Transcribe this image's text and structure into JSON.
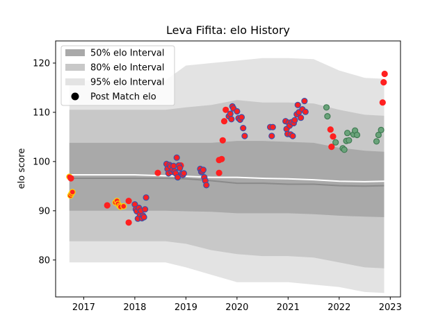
{
  "chart_data": {
    "type": "scatter",
    "title": "Leva Fifita: elo History",
    "xlabel": "",
    "ylabel": "elo score",
    "xlim": [
      2016.45,
      2023.2
    ],
    "ylim": [
      72.5,
      124.5
    ],
    "x_ticks": [
      2017,
      2018,
      2019,
      2020,
      2021,
      2022,
      2023
    ],
    "y_ticks": [
      80,
      90,
      100,
      110,
      120
    ],
    "grid": false,
    "legend": {
      "placement": "top-left",
      "entries": [
        "50% elo Interval",
        "80% elo Interval",
        "95% elo Interval",
        "Post Match elo"
      ]
    },
    "colors": {
      "band50": "#a9a9a9",
      "band80": "#c8c8c8",
      "band95": "#e3e3e3",
      "median_line": "#8a8a8a",
      "mean_line": "#ffffff",
      "point_fill": "#ff2020",
      "edge_yellow": "#ffd400",
      "edge_blue": "#3b4fa8",
      "green_fill": "#6aa37a",
      "green_edge": "#3f7a52"
    },
    "bands": {
      "x": [
        2016.72,
        2018.0,
        2018.6,
        2019.0,
        2019.5,
        2020.0,
        2020.5,
        2021.0,
        2021.5,
        2022.0,
        2022.5,
        2022.88
      ],
      "p95_upper": [
        116.5,
        116.5,
        116.5,
        119.5,
        120.0,
        120.5,
        121.0,
        121.0,
        120.8,
        118.5,
        117.0,
        116.8
      ],
      "p80_upper": [
        110.5,
        110.5,
        110.5,
        111.0,
        111.5,
        112.5,
        112.0,
        112.0,
        111.8,
        110.5,
        109.5,
        109.3
      ],
      "p50_upper": [
        103.8,
        103.8,
        103.8,
        103.8,
        103.8,
        104.2,
        104.2,
        104.0,
        103.8,
        102.8,
        102.2,
        102.0
      ],
      "p50_lower": [
        90.0,
        90.0,
        90.0,
        89.9,
        89.8,
        89.5,
        89.5,
        89.5,
        89.3,
        89.0,
        88.8,
        88.7
      ],
      "p80_lower": [
        83.8,
        83.8,
        83.8,
        83.3,
        82.0,
        81.2,
        80.8,
        80.8,
        80.5,
        79.5,
        78.5,
        78.3
      ],
      "p95_lower": [
        79.5,
        79.5,
        79.5,
        78.5,
        77.0,
        75.5,
        75.5,
        75.5,
        75.0,
        74.5,
        73.5,
        73.3
      ],
      "median": [
        96.6,
        96.6,
        96.6,
        96.5,
        96.1,
        95.6,
        95.6,
        95.4,
        95.4,
        95.1,
        95.0,
        95.1
      ],
      "mean": [
        97.3,
        97.3,
        97.1,
        97.0,
        96.8,
        96.8,
        96.6,
        96.5,
        96.3,
        96.0,
        95.9,
        96.0
      ]
    },
    "series": [
      {
        "edge": "yellow",
        "points": [
          [
            2016.72,
            96.9
          ],
          [
            2016.74,
            93.1
          ],
          [
            2016.76,
            93.5
          ],
          [
            2016.78,
            93.8
          ],
          [
            2017.62,
            91.7
          ],
          [
            2017.65,
            92.0
          ],
          [
            2017.67,
            91.4
          ],
          [
            2017.7,
            91.0
          ],
          [
            2017.72,
            90.8
          ],
          [
            2017.78,
            90.9
          ]
        ]
      },
      {
        "edge": "red",
        "points": [
          [
            2016.75,
            96.6
          ],
          [
            2017.46,
            91.1
          ],
          [
            2017.88,
            87.6
          ],
          [
            2017.88,
            92.0
          ],
          [
            2018.45,
            97.7
          ],
          [
            2018.9,
            99.2
          ],
          [
            2019.65,
            97.7
          ],
          [
            2019.65,
            100.3
          ],
          [
            2019.7,
            100.5
          ],
          [
            2019.72,
            104.3
          ],
          [
            2019.75,
            108.2
          ],
          [
            2019.78,
            110.5
          ],
          [
            2021.83,
            106.5
          ],
          [
            2021.85,
            103.0
          ],
          [
            2021.88,
            105.1
          ],
          [
            2022.85,
            112.0
          ],
          [
            2022.87,
            116.1
          ],
          [
            2022.89,
            117.8
          ]
        ]
      },
      {
        "edge": "blue",
        "points": [
          [
            2018.0,
            91.3
          ],
          [
            2018.02,
            90.3
          ],
          [
            2018.04,
            89.9
          ],
          [
            2018.06,
            88.4
          ],
          [
            2018.08,
            90.6
          ],
          [
            2018.1,
            89.3
          ],
          [
            2018.12,
            90.0
          ],
          [
            2018.14,
            88.5
          ],
          [
            2018.16,
            89.0
          ],
          [
            2018.18,
            88.7
          ],
          [
            2018.2,
            90.3
          ],
          [
            2018.22,
            92.7
          ],
          [
            2018.62,
            99.5
          ],
          [
            2018.64,
            98.5
          ],
          [
            2018.66,
            97.6
          ],
          [
            2018.68,
            99.3
          ],
          [
            2018.7,
            99.0
          ],
          [
            2018.72,
            97.9
          ],
          [
            2018.74,
            98.4
          ],
          [
            2018.76,
            99.1
          ],
          [
            2018.78,
            98.0
          ],
          [
            2018.8,
            97.6
          ],
          [
            2018.82,
            100.8
          ],
          [
            2018.84,
            96.8
          ],
          [
            2018.86,
            99.2
          ],
          [
            2018.88,
            98.7
          ],
          [
            2018.92,
            97.5
          ],
          [
            2018.94,
            97.3
          ],
          [
            2018.96,
            97.6
          ],
          [
            2019.28,
            98.5
          ],
          [
            2019.3,
            97.9
          ],
          [
            2019.32,
            98.0
          ],
          [
            2019.34,
            98.3
          ],
          [
            2019.36,
            96.8
          ],
          [
            2019.38,
            96.1
          ],
          [
            2019.4,
            95.2
          ],
          [
            2019.84,
            109.2
          ],
          [
            2019.87,
            109.7
          ],
          [
            2019.89,
            108.6
          ],
          [
            2019.91,
            111.2
          ],
          [
            2019.93,
            110.8
          ],
          [
            2020.0,
            110.2
          ],
          [
            2020.03,
            108.8
          ],
          [
            2020.06,
            108.5
          ],
          [
            2020.09,
            109.0
          ],
          [
            2020.12,
            106.8
          ],
          [
            2020.15,
            105.2
          ],
          [
            2020.65,
            107.0
          ],
          [
            2020.68,
            105.2
          ],
          [
            2020.7,
            107.0
          ],
          [
            2020.95,
            108.2
          ],
          [
            2020.97,
            106.6
          ],
          [
            2020.99,
            105.6
          ],
          [
            2021.01,
            107.9
          ],
          [
            2021.03,
            107.3
          ],
          [
            2021.05,
            105.5
          ],
          [
            2021.07,
            108.0
          ],
          [
            2021.09,
            105.2
          ],
          [
            2021.11,
            107.8
          ],
          [
            2021.13,
            108.4
          ],
          [
            2021.17,
            109.6
          ],
          [
            2021.19,
            111.5
          ],
          [
            2021.21,
            110.0
          ],
          [
            2021.25,
            108.9
          ],
          [
            2021.28,
            110.6
          ],
          [
            2021.32,
            112.3
          ],
          [
            2021.34,
            110.1
          ]
        ]
      },
      {
        "edge": "green",
        "points": [
          [
            2021.75,
            111.0
          ],
          [
            2021.77,
            109.2
          ],
          [
            2021.93,
            103.9
          ],
          [
            2022.07,
            102.7
          ],
          [
            2022.1,
            102.4
          ],
          [
            2022.14,
            104.2
          ],
          [
            2022.16,
            105.8
          ],
          [
            2022.19,
            104.3
          ],
          [
            2022.28,
            105.5
          ],
          [
            2022.31,
            106.3
          ],
          [
            2022.35,
            105.4
          ],
          [
            2022.73,
            104.1
          ],
          [
            2022.77,
            105.4
          ],
          [
            2022.82,
            106.4
          ]
        ]
      }
    ]
  }
}
